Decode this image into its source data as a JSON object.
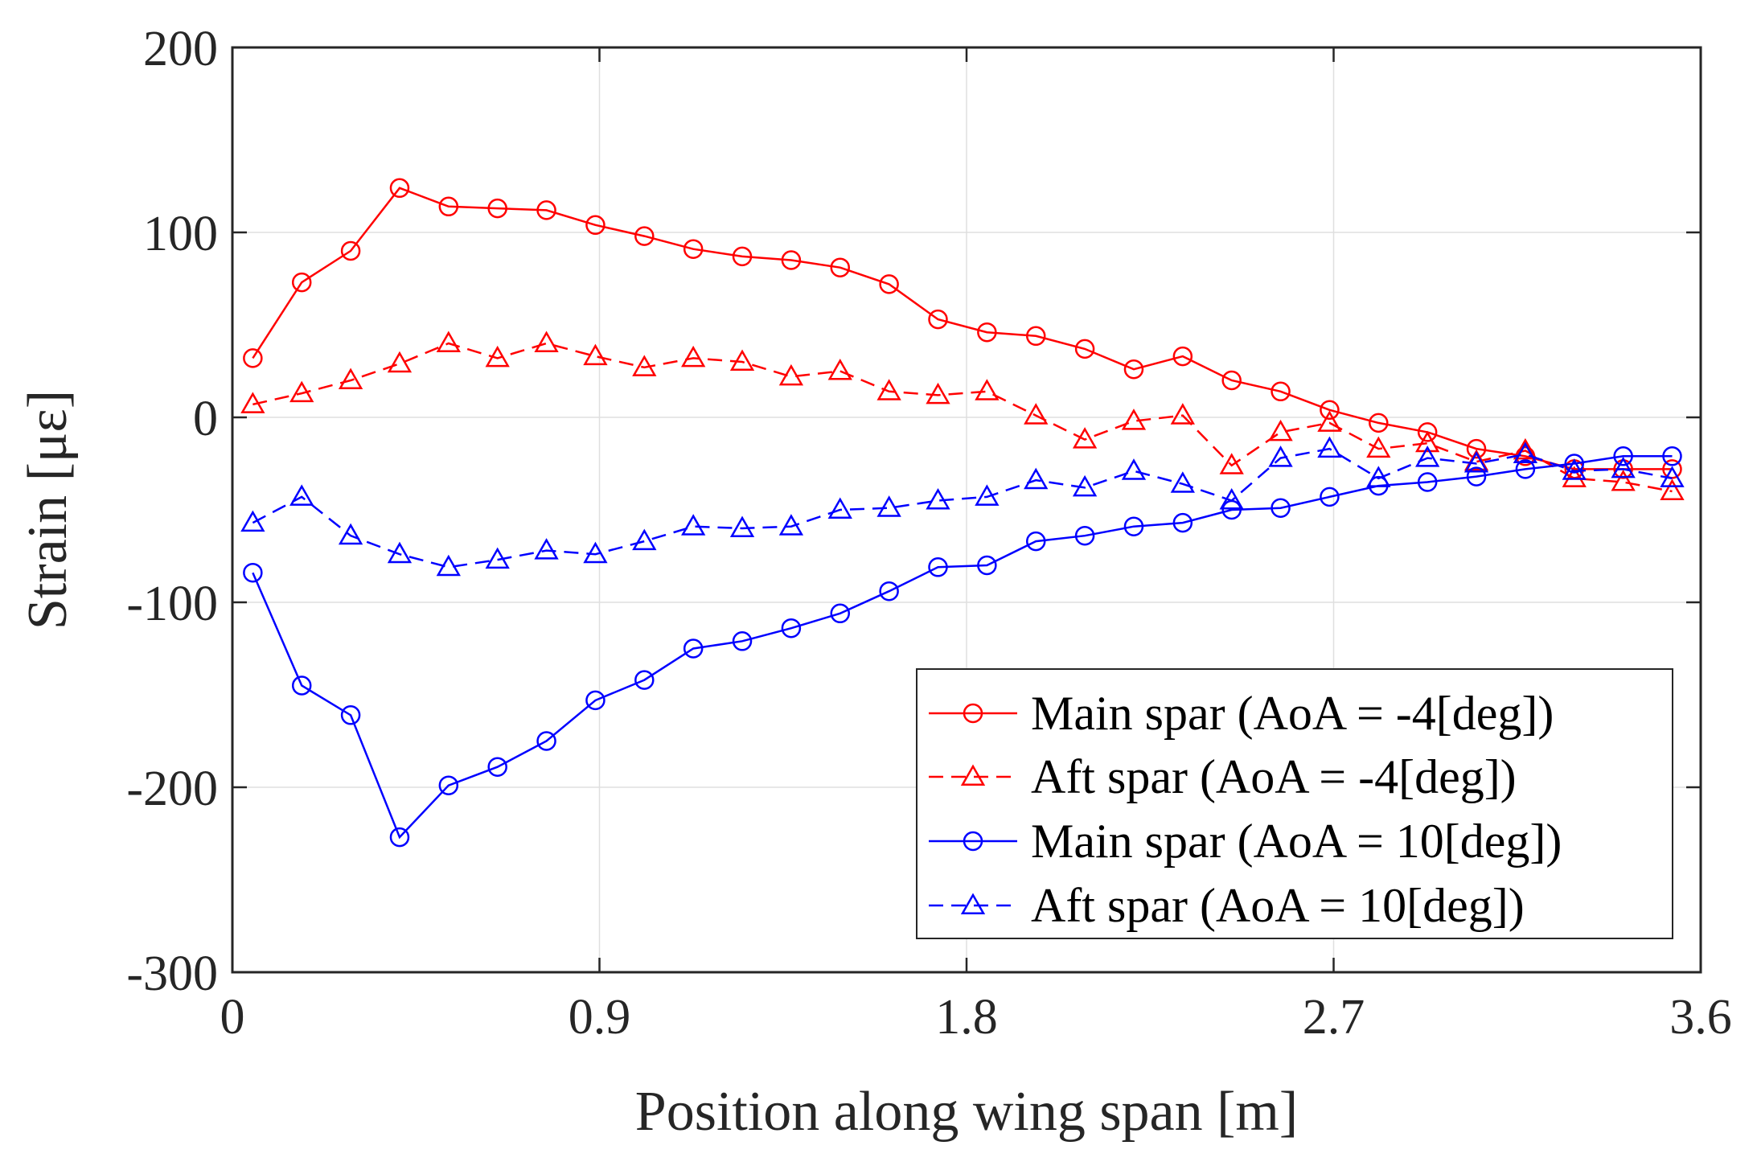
{
  "chart_data": {
    "type": "line",
    "title": "",
    "xlabel": "Position along wing span [m]",
    "ylabel": "Strain [με]",
    "xlim": [
      0,
      3.6
    ],
    "ylim": [
      -300,
      200
    ],
    "xticks": [
      0,
      0.9,
      1.8,
      2.7,
      3.6
    ],
    "xtick_labels": [
      "0",
      "0.9",
      "1.8",
      "2.7",
      "3.6"
    ],
    "yticks": [
      -300,
      -200,
      -100,
      0,
      100,
      200
    ],
    "ytick_labels": [
      "-300",
      "-200",
      "-100",
      "0",
      "100",
      "200"
    ],
    "grid": true,
    "legend_position": "bottom-right",
    "x": [
      0.05,
      0.17,
      0.29,
      0.41,
      0.53,
      0.65,
      0.77,
      0.89,
      1.01,
      1.13,
      1.25,
      1.37,
      1.49,
      1.61,
      1.73,
      1.85,
      1.97,
      2.09,
      2.21,
      2.33,
      2.45,
      2.57,
      2.69,
      2.81,
      2.93,
      3.05,
      3.17,
      3.29,
      3.41,
      3.53
    ],
    "series": [
      {
        "name": "Main spar (AoA = -4[deg])",
        "color": "#ff0000",
        "line_style": "solid",
        "marker": "circle",
        "values": [
          32,
          73,
          90,
          124,
          114,
          113,
          112,
          104,
          98,
          91,
          87,
          85,
          81,
          72,
          53,
          46,
          44,
          37,
          26,
          33,
          20,
          14,
          4,
          -3,
          -8,
          -17,
          -21,
          -28,
          -28,
          -28
        ]
      },
      {
        "name": "Aft spar (AoA = -4[deg])",
        "color": "#ff0000",
        "line_style": "dashed",
        "marker": "triangle",
        "values": [
          7,
          13,
          20,
          29,
          40,
          32,
          40,
          33,
          27,
          32,
          30,
          22,
          25,
          14,
          12,
          14,
          1,
          -12,
          -2,
          1,
          -26,
          -8,
          -3,
          -17,
          -14,
          -24,
          -18,
          -33,
          -35,
          -40
        ]
      },
      {
        "name": "Main spar (AoA = 10[deg])",
        "color": "#0000ff",
        "line_style": "solid",
        "marker": "circle",
        "values": [
          -84,
          -145,
          -161,
          -227,
          -199,
          -189,
          -175,
          -153,
          -142,
          -125,
          -121,
          -114,
          -106,
          -94,
          -81,
          -80,
          -67,
          -64,
          -59,
          -57,
          -50,
          -49,
          -43,
          -37,
          -35,
          -32,
          -28,
          -25,
          -21,
          -21
        ]
      },
      {
        "name": "Aft spar (AoA = 10[deg])",
        "color": "#0000ff",
        "line_style": "dashed",
        "marker": "triangle",
        "values": [
          -57,
          -43,
          -64,
          -74,
          -81,
          -77,
          -72,
          -74,
          -67,
          -59,
          -60,
          -59,
          -50,
          -49,
          -45,
          -43,
          -34,
          -38,
          -29,
          -36,
          -45,
          -22,
          -17,
          -33,
          -22,
          -25,
          -20,
          -29,
          -28,
          -33
        ]
      }
    ]
  }
}
